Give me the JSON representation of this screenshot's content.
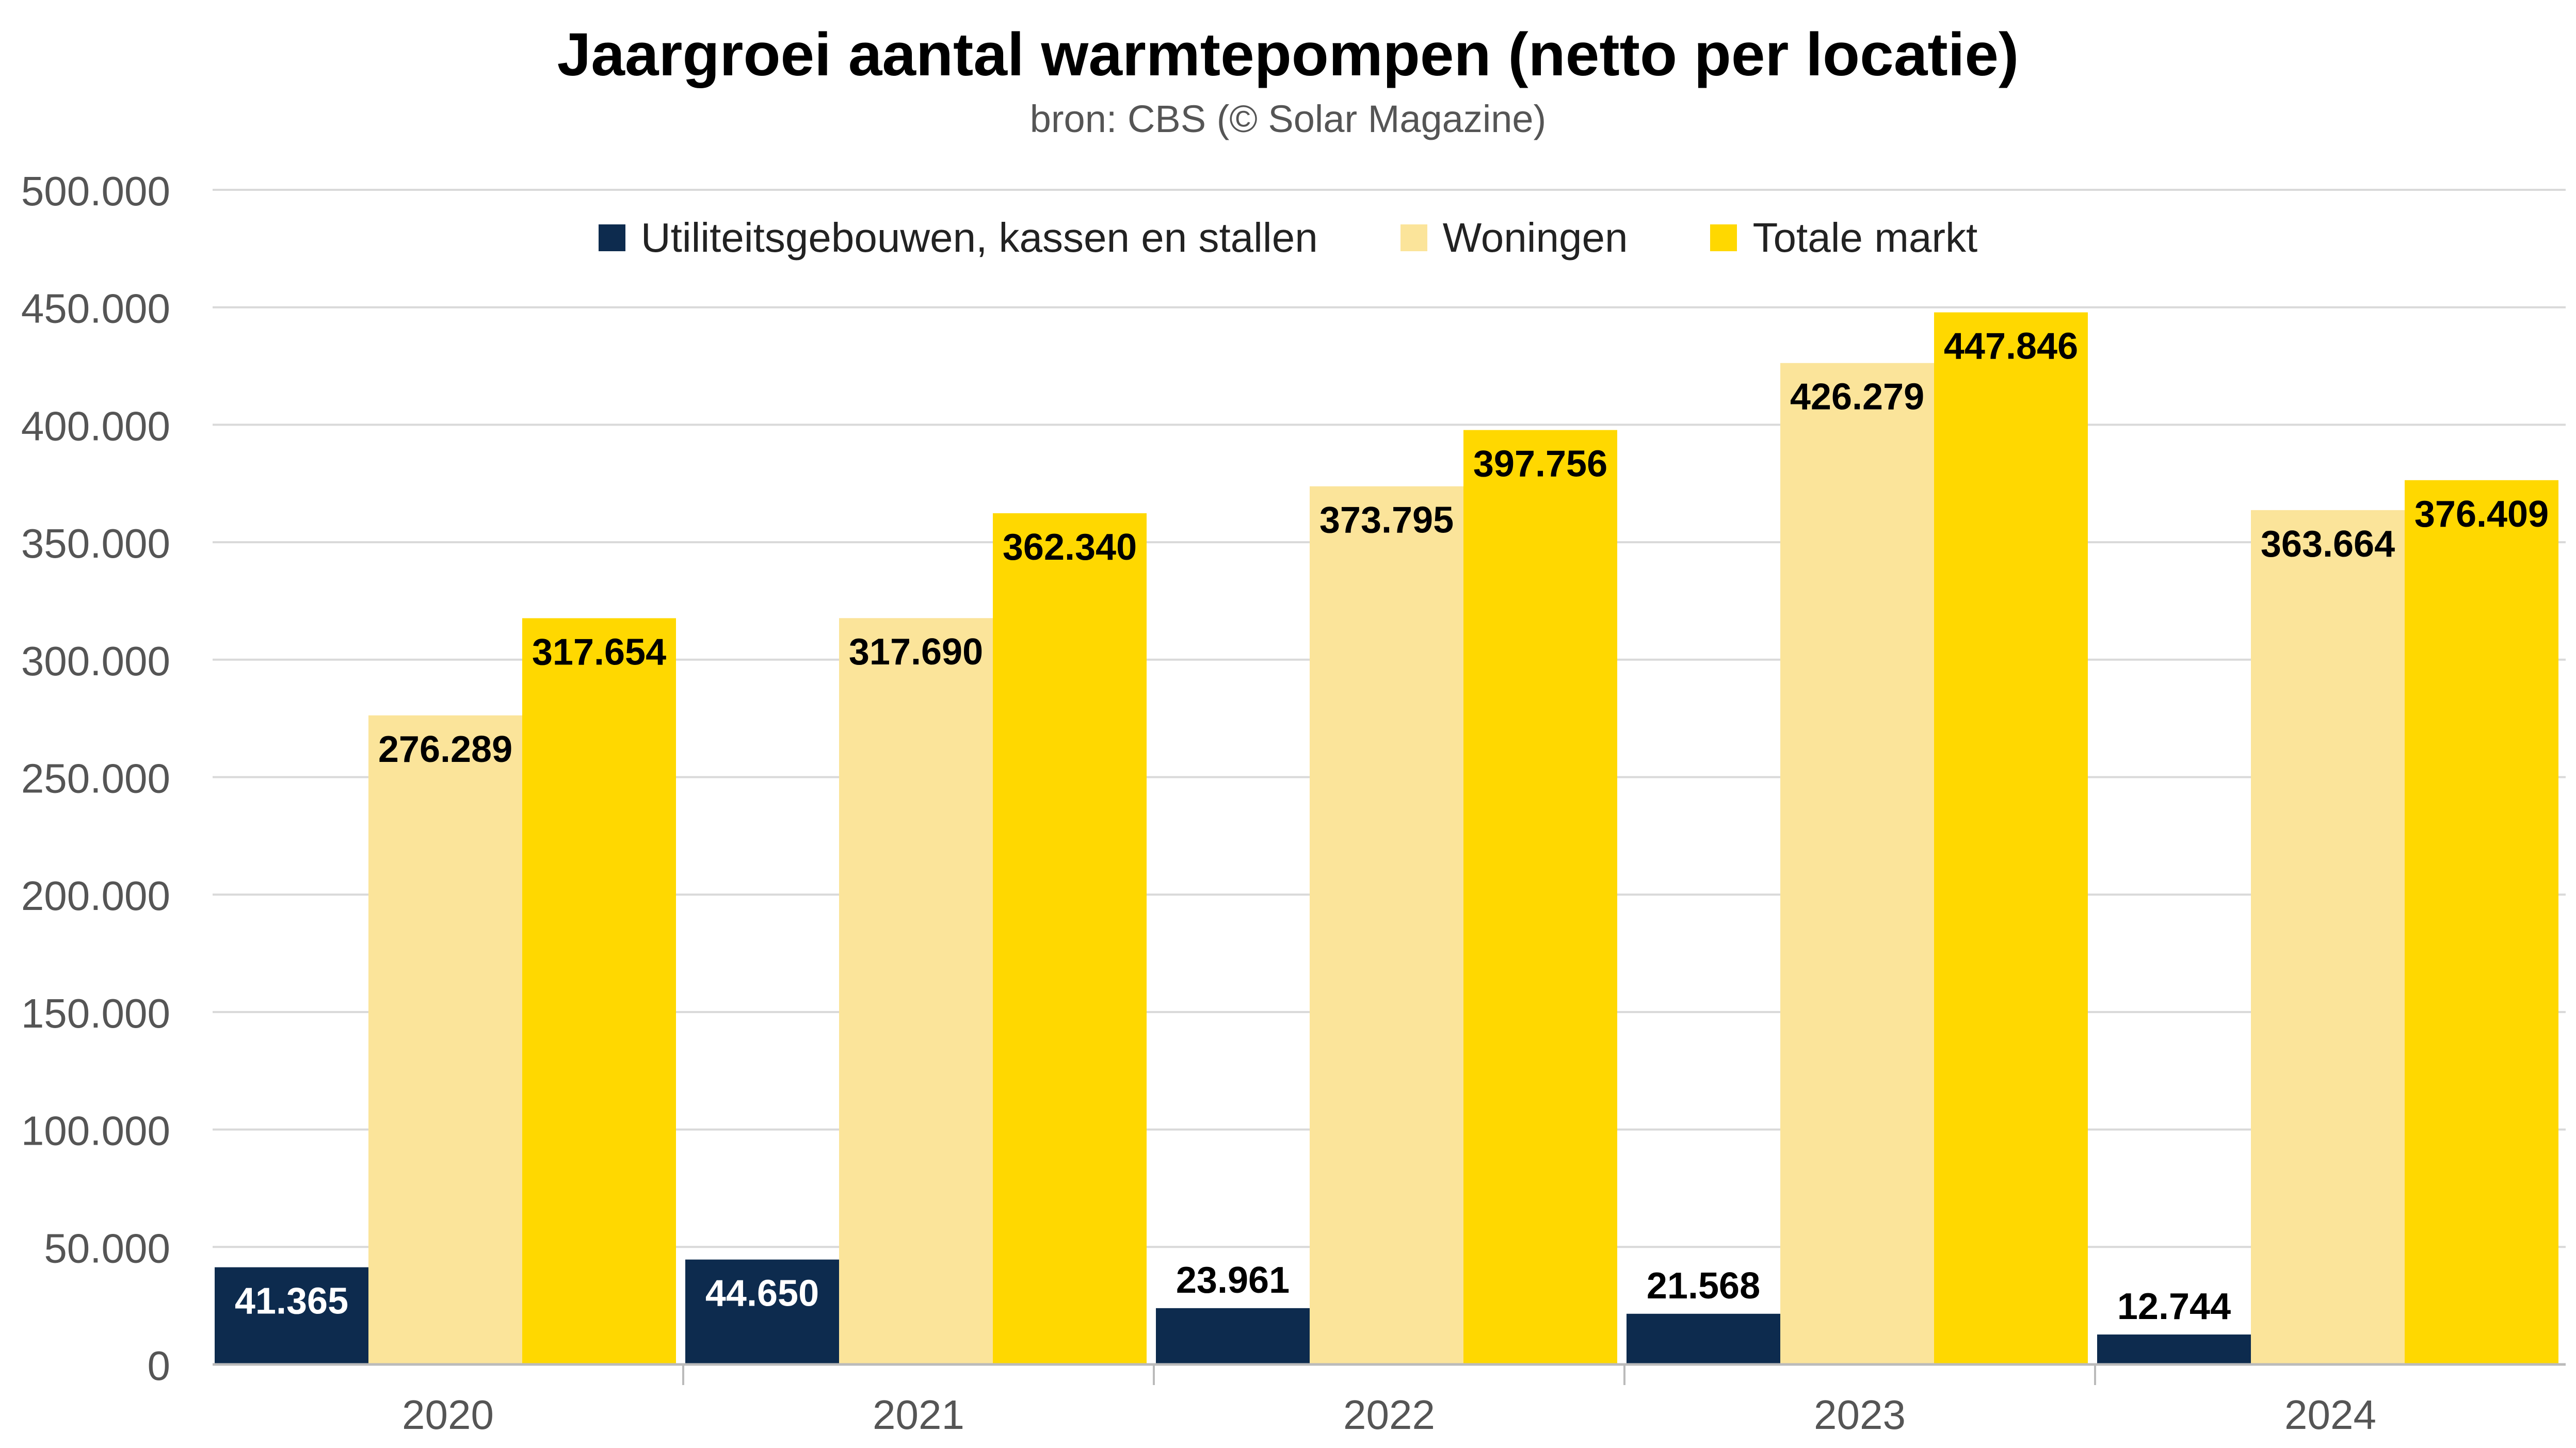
{
  "chart_data": {
    "type": "bar",
    "title": "Jaargroei aantal warmtepompen (netto per locatie)",
    "subtitle": "bron: CBS (© Solar Magazine)",
    "categories": [
      "2020",
      "2021",
      "2022",
      "2023",
      "2024"
    ],
    "series": [
      {
        "name": "Utiliteitsgebouwen, kassen en stallen",
        "color": "#0d2b4e",
        "label_color": "#ffffff",
        "values": [
          41365,
          44650,
          23961,
          21568,
          12744
        ],
        "labels": [
          "41.365",
          "44.650",
          "23.961",
          "21.568",
          "12.744"
        ]
      },
      {
        "name": "Woningen",
        "color": "#fbe49a",
        "label_color": "#000000",
        "values": [
          276289,
          317690,
          373795,
          426279,
          363664
        ],
        "labels": [
          "276.289",
          "317.690",
          "373.795",
          "426.279",
          "363.664"
        ]
      },
      {
        "name": "Totale markt",
        "color": "#ffd800",
        "label_color": "#000000",
        "values": [
          317654,
          362340,
          397756,
          447846,
          376409
        ],
        "labels": [
          "317.654",
          "362.340",
          "397.756",
          "447.846",
          "376.409"
        ]
      }
    ],
    "ylim": [
      0,
      500000
    ],
    "yticks": [
      0,
      50000,
      100000,
      150000,
      200000,
      250000,
      300000,
      350000,
      400000,
      450000,
      500000
    ],
    "ytick_labels": [
      "0",
      "50.000",
      "100.000",
      "150.000",
      "200.000",
      "250.000",
      "300.000",
      "350.000",
      "400.000",
      "450.000",
      "500.000"
    ],
    "grid": true,
    "legend_position": "top-center"
  }
}
